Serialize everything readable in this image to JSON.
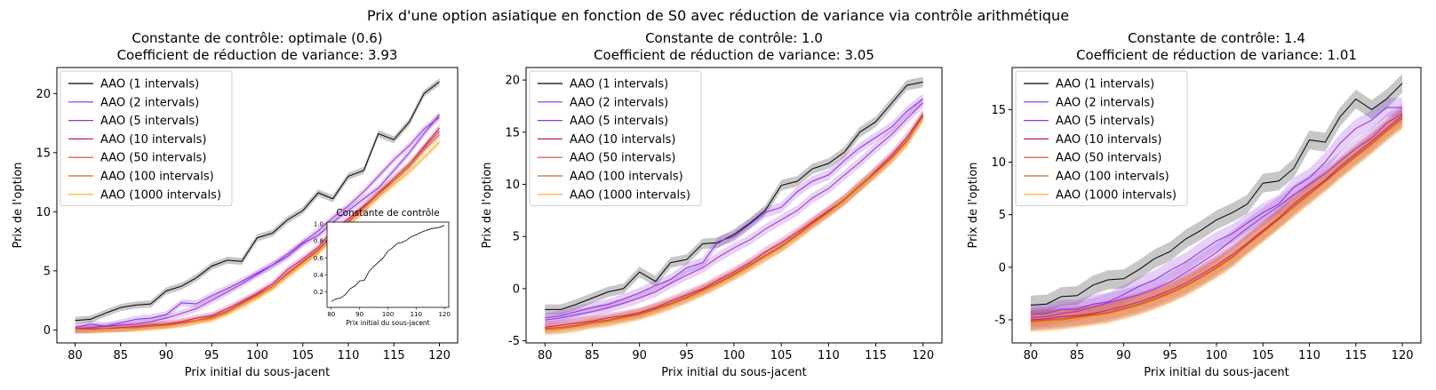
{
  "figure": {
    "suptitle": "Prix d'une option asiatique en fonction de S0 avec réduction de variance via contrôle arithmétique"
  },
  "chart_data": [
    {
      "type": "line",
      "title_line1": "Constante de contrôle: optimale (0.6)",
      "title_line2": "Coefficient de réduction de variance: 3.93",
      "xlabel": "Prix initial du sous-jacent",
      "ylabel": "Prix de l'option",
      "xlim": [
        78,
        122
      ],
      "ylim": [
        -1.1,
        22.2
      ],
      "xticks": [
        80,
        85,
        90,
        95,
        100,
        105,
        110,
        115,
        120
      ],
      "yticks": [
        0,
        5,
        10,
        15,
        20
      ],
      "legend_position": "upper-left",
      "band_halfwidth": 0.3,
      "x": [
        80,
        81.7,
        83.3,
        85,
        86.7,
        88.3,
        90,
        91.7,
        93.3,
        95,
        96.7,
        98.3,
        100,
        101.7,
        103.3,
        105,
        106.7,
        108.3,
        110,
        111.7,
        113.3,
        115,
        116.7,
        118.3,
        120
      ],
      "series": [
        {
          "name": "AAO (1 intervals)",
          "color": "#000000",
          "values": [
            0.8,
            0.9,
            1.4,
            1.9,
            2.1,
            2.2,
            3.3,
            3.7,
            4.4,
            5.4,
            5.9,
            5.8,
            7.8,
            8.2,
            9.3,
            10.1,
            11.6,
            11.1,
            13.0,
            13.5,
            16.6,
            16.1,
            17.6,
            20.0,
            21.0
          ]
        },
        {
          "name": "AAO (2 intervals)",
          "color": "#8a2be2",
          "values": [
            0.2,
            0.5,
            0.3,
            0.6,
            0.9,
            1.0,
            1.3,
            2.3,
            2.2,
            2.9,
            3.5,
            4.1,
            4.8,
            5.5,
            6.2,
            7.3,
            8.0,
            9.1,
            10.1,
            11.1,
            12.0,
            13.5,
            15.0,
            16.6,
            18.2
          ]
        },
        {
          "name": "AAO (5 intervals)",
          "color": "#9932cc",
          "values": [
            0.1,
            0.2,
            0.3,
            0.4,
            0.5,
            0.7,
            1.0,
            1.4,
            1.8,
            2.5,
            3.2,
            3.9,
            4.7,
            5.5,
            6.4,
            7.4,
            8.4,
            9.5,
            10.5,
            11.7,
            13.0,
            14.4,
            15.6,
            17.0,
            18.0
          ]
        },
        {
          "name": "AAO (10 intervals)",
          "color": "#c71585",
          "values": [
            0.0,
            0.1,
            0.1,
            0.2,
            0.3,
            0.4,
            0.5,
            0.7,
            1.0,
            1.2,
            1.8,
            2.4,
            3.1,
            3.9,
            5.1,
            6.0,
            7.0,
            8.5,
            9.4,
            10.5,
            11.5,
            12.8,
            14.0,
            15.5,
            17.1
          ]
        },
        {
          "name": "AAO (50 intervals)",
          "color": "#e0442a",
          "values": [
            0.0,
            0.0,
            0.1,
            0.1,
            0.2,
            0.3,
            0.4,
            0.6,
            0.8,
            1.1,
            1.6,
            2.3,
            3.0,
            3.7,
            4.8,
            5.8,
            6.8,
            8.1,
            9.2,
            10.4,
            11.6,
            12.8,
            14.0,
            15.4,
            16.8
          ]
        },
        {
          "name": "AAO (100 intervals)",
          "color": "#d2691e",
          "values": [
            0.0,
            0.0,
            0.1,
            0.1,
            0.2,
            0.3,
            0.4,
            0.5,
            0.8,
            1.0,
            1.5,
            2.2,
            2.9,
            3.7,
            4.7,
            5.7,
            6.7,
            8.0,
            9.1,
            10.3,
            11.5,
            12.6,
            13.8,
            15.2,
            16.5
          ]
        },
        {
          "name": "AAO (1000 intervals)",
          "color": "#f5a623",
          "values": [
            0.0,
            0.0,
            0.0,
            0.1,
            0.1,
            0.2,
            0.3,
            0.5,
            0.7,
            0.9,
            1.4,
            2.0,
            2.7,
            3.5,
            4.5,
            5.5,
            6.5,
            7.7,
            8.8,
            10.0,
            11.2,
            12.3,
            13.4,
            14.6,
            15.9
          ]
        }
      ],
      "inset": {
        "title": "Constante de contrôle",
        "xlabel": "Prix initial du sous-jacent",
        "xlim": [
          78.5,
          121.5
        ],
        "ylim": [
          0.02,
          1.02
        ],
        "xticks": [
          80,
          90,
          100,
          110,
          120
        ],
        "yticks": [
          0.2,
          0.4,
          0.6,
          0.8,
          1.0
        ],
        "x": [
          80,
          81.7,
          83.3,
          85,
          86.7,
          88.3,
          90,
          91.7,
          93.3,
          95,
          96.7,
          98.3,
          100,
          101.7,
          103.3,
          105,
          106.7,
          108.3,
          110,
          111.7,
          113.3,
          115,
          116.7,
          118.3,
          120
        ],
        "values": [
          0.09,
          0.12,
          0.13,
          0.17,
          0.24,
          0.27,
          0.33,
          0.34,
          0.44,
          0.5,
          0.55,
          0.6,
          0.68,
          0.72,
          0.77,
          0.78,
          0.81,
          0.85,
          0.87,
          0.9,
          0.92,
          0.94,
          0.95,
          0.96,
          0.98
        ]
      }
    },
    {
      "type": "line",
      "title_line1": "Constante de contrôle: 1.0",
      "title_line2": "Coefficient de réduction de variance: 3.05",
      "xlabel": "Prix initial du sous-jacent",
      "ylabel": "Prix de l'option",
      "xlim": [
        78,
        122
      ],
      "ylim": [
        -5.2,
        21.2
      ],
      "xticks": [
        80,
        85,
        90,
        95,
        100,
        105,
        110,
        115,
        120
      ],
      "yticks": [
        -5,
        0,
        5,
        10,
        15,
        20
      ],
      "legend_position": "upper-left",
      "band_halfwidth": 0.5,
      "x": [
        80,
        81.7,
        83.3,
        85,
        86.7,
        88.3,
        90,
        91.7,
        93.3,
        95,
        96.7,
        98.3,
        100,
        101.7,
        103.3,
        105,
        106.7,
        108.3,
        110,
        111.7,
        113.3,
        115,
        116.7,
        118.3,
        120
      ],
      "series": [
        {
          "name": "AAO (1 intervals)",
          "color": "#000000",
          "values": [
            -2.0,
            -2.0,
            -1.5,
            -0.9,
            -0.3,
            0.0,
            1.6,
            0.7,
            2.5,
            2.8,
            4.3,
            4.4,
            5.2,
            6.3,
            7.5,
            9.9,
            10.3,
            11.5,
            12.0,
            13.1,
            15.0,
            16.0,
            17.8,
            19.5,
            19.8
          ]
        },
        {
          "name": "AAO (2 intervals)",
          "color": "#8a2be2",
          "values": [
            -2.8,
            -2.6,
            -2.2,
            -1.8,
            -1.5,
            -1.0,
            -0.4,
            0.3,
            0.9,
            2.0,
            2.5,
            4.5,
            5.0,
            6.2,
            7.3,
            7.8,
            9.3,
            10.3,
            10.9,
            12.3,
            13.5,
            14.5,
            15.5,
            17.0,
            18.2
          ]
        },
        {
          "name": "AAO (5 intervals)",
          "color": "#9932cc",
          "values": [
            -3.0,
            -2.8,
            -2.5,
            -2.2,
            -1.8,
            -1.4,
            -0.9,
            -0.3,
            0.5,
            1.3,
            2.0,
            3.0,
            3.9,
            4.7,
            5.7,
            6.6,
            7.5,
            8.7,
            9.6,
            10.9,
            12.1,
            13.5,
            14.8,
            16.3,
            17.8
          ]
        },
        {
          "name": "AAO (10 intervals)",
          "color": "#c71585",
          "values": [
            -3.7,
            -3.5,
            -3.3,
            -3.1,
            -2.8,
            -2.6,
            -2.3,
            -1.8,
            -1.2,
            -0.6,
            0.0,
            0.8,
            1.6,
            2.5,
            3.5,
            4.4,
            5.4,
            6.4,
            7.5,
            8.5,
            9.8,
            11.3,
            12.8,
            14.5,
            16.7
          ]
        },
        {
          "name": "AAO (50 intervals)",
          "color": "#e0442a",
          "values": [
            -3.8,
            -3.7,
            -3.5,
            -3.2,
            -3.0,
            -2.7,
            -2.4,
            -1.9,
            -1.4,
            -0.8,
            -0.1,
            0.6,
            1.4,
            2.3,
            3.2,
            4.1,
            5.2,
            6.3,
            7.4,
            8.6,
            9.9,
            11.2,
            12.6,
            14.2,
            16.6
          ]
        },
        {
          "name": "AAO (100 intervals)",
          "color": "#d2691e",
          "values": [
            -3.9,
            -3.8,
            -3.6,
            -3.3,
            -3.1,
            -2.8,
            -2.5,
            -2.0,
            -1.5,
            -0.9,
            -0.2,
            0.5,
            1.3,
            2.2,
            3.1,
            4.0,
            5.1,
            6.2,
            7.3,
            8.5,
            9.8,
            11.1,
            12.5,
            14.1,
            16.5
          ]
        },
        {
          "name": "AAO (1000 intervals)",
          "color": "#f5a623",
          "values": [
            -4.0,
            -3.9,
            -3.7,
            -3.4,
            -3.2,
            -2.9,
            -2.6,
            -2.1,
            -1.6,
            -1.0,
            -0.3,
            0.4,
            1.2,
            2.1,
            3.0,
            3.9,
            5.0,
            6.1,
            7.2,
            8.4,
            9.7,
            11.0,
            12.4,
            14.0,
            16.4
          ]
        }
      ]
    },
    {
      "type": "line",
      "title_line1": "Constante de contrôle: 1.4",
      "title_line2": "Coefficient de réduction de variance: 1.01",
      "xlabel": "Prix initial du sous-jacent",
      "ylabel": "Prix de l'option",
      "xlim": [
        78,
        122
      ],
      "ylim": [
        -7.2,
        19.0
      ],
      "xticks": [
        80,
        85,
        90,
        95,
        100,
        105,
        110,
        115,
        120
      ],
      "yticks": [
        -5,
        0,
        5,
        10,
        15
      ],
      "legend_position": "upper-left",
      "band_halfwidth": 0.9,
      "x": [
        80,
        81.7,
        83.3,
        85,
        86.7,
        88.3,
        90,
        91.7,
        93.3,
        95,
        96.7,
        98.3,
        100,
        101.7,
        103.3,
        105,
        106.7,
        108.3,
        110,
        111.7,
        113.3,
        115,
        116.7,
        118.3,
        120
      ],
      "series": [
        {
          "name": "AAO (1 intervals)",
          "color": "#000000",
          "values": [
            -3.6,
            -3.5,
            -2.8,
            -2.7,
            -1.7,
            -1.2,
            -1.1,
            -0.2,
            0.8,
            1.5,
            2.7,
            3.5,
            4.5,
            5.2,
            6.0,
            8.0,
            8.2,
            9.4,
            12.1,
            11.9,
            14.3,
            16.0,
            15.0,
            16.0,
            17.5
          ]
        },
        {
          "name": "AAO (2 intervals)",
          "color": "#8a2be2",
          "values": [
            -4.5,
            -4.4,
            -4.0,
            -4.0,
            -3.5,
            -3.3,
            -2.6,
            -1.8,
            -1.2,
            -0.3,
            0.5,
            1.5,
            2.5,
            3.2,
            4.2,
            5.2,
            6.0,
            7.6,
            8.5,
            10.0,
            11.8,
            13.2,
            14.0,
            15.2,
            15.2
          ]
        },
        {
          "name": "AAO (5 intervals)",
          "color": "#9932cc",
          "values": [
            -4.8,
            -4.7,
            -4.4,
            -4.2,
            -3.8,
            -3.4,
            -3.0,
            -2.6,
            -2.1,
            -1.4,
            -0.5,
            0.4,
            1.4,
            2.6,
            3.7,
            4.8,
            5.8,
            6.9,
            7.9,
            8.9,
            10.1,
            11.3,
            12.3,
            13.7,
            14.6
          ]
        },
        {
          "name": "AAO (10 intervals)",
          "color": "#c71585",
          "values": [
            -5.0,
            -4.9,
            -4.7,
            -4.6,
            -4.4,
            -4.1,
            -3.7,
            -3.3,
            -2.8,
            -2.2,
            -1.5,
            -0.7,
            0.2,
            1.2,
            2.3,
            3.5,
            4.7,
            6.0,
            7.2,
            8.3,
            9.6,
            10.8,
            12.0,
            13.2,
            14.4
          ]
        },
        {
          "name": "AAO (50 intervals)",
          "color": "#e0442a",
          "values": [
            -5.1,
            -5.0,
            -4.9,
            -4.7,
            -4.5,
            -4.3,
            -3.9,
            -3.5,
            -3.0,
            -2.4,
            -1.7,
            -0.9,
            0.0,
            1.0,
            2.2,
            3.4,
            4.6,
            5.8,
            7.0,
            8.2,
            9.4,
            10.6,
            11.8,
            13.0,
            14.2
          ]
        },
        {
          "name": "AAO (100 intervals)",
          "color": "#d2691e",
          "values": [
            -5.2,
            -5.1,
            -5.0,
            -4.8,
            -4.6,
            -4.4,
            -4.0,
            -3.6,
            -3.1,
            -2.5,
            -1.8,
            -1.0,
            -0.1,
            0.9,
            2.1,
            3.3,
            4.5,
            5.7,
            6.9,
            8.1,
            9.3,
            10.5,
            11.7,
            12.9,
            14.1
          ]
        },
        {
          "name": "AAO (1000 intervals)",
          "color": "#f5a623",
          "values": [
            -5.3,
            -5.2,
            -5.1,
            -4.9,
            -4.7,
            -4.5,
            -4.1,
            -3.7,
            -3.2,
            -2.6,
            -1.9,
            -1.1,
            -0.2,
            0.8,
            2.0,
            3.2,
            4.4,
            5.6,
            6.8,
            8.0,
            9.2,
            10.4,
            11.6,
            12.8,
            14.0
          ]
        }
      ]
    }
  ]
}
